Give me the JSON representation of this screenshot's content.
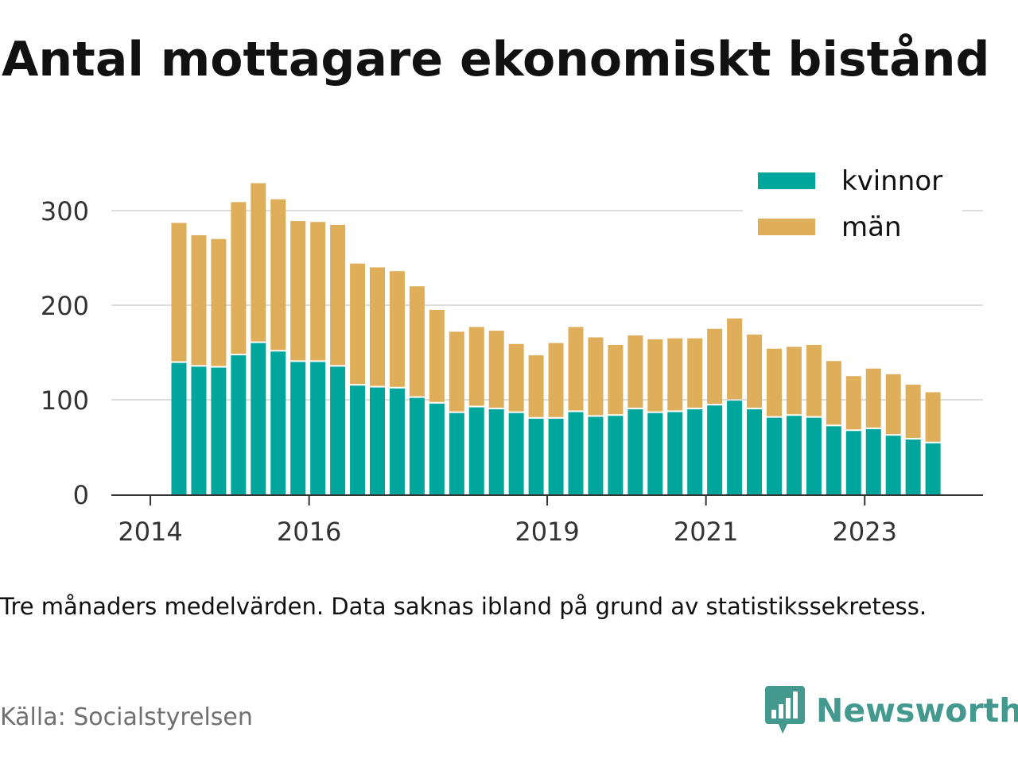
{
  "title": "Antal mottagare ekonomiskt bistånd",
  "caption": "Tre månaders medelvärden. Data saknas ibland på grund av statistikssekretess.",
  "source": "Källa: Socialstyrelsen",
  "brand": {
    "name": "Newsworthy",
    "icon": "newsworthy-logo-icon",
    "color": "#44998f"
  },
  "chart_data": {
    "type": "bar",
    "stacked": true,
    "ylim": [
      0,
      330
    ],
    "yticks": [
      0,
      100,
      200,
      300
    ],
    "xticks": [
      {
        "label": "2014",
        "index": -1
      },
      {
        "label": "2016",
        "index": 7
      },
      {
        "label": "2019",
        "index": 19
      },
      {
        "label": "2021",
        "index": 27
      },
      {
        "label": "2023",
        "index": 35
      }
    ],
    "grid": true,
    "legend_position": "top-right",
    "series": [
      {
        "name": "kvinnor",
        "color": "#00a69c",
        "values": [
          139,
          135,
          134,
          147,
          160,
          151,
          140,
          140,
          135,
          115,
          113,
          112,
          102,
          96,
          86,
          92,
          90,
          86,
          80,
          80,
          87,
          82,
          83,
          90,
          86,
          87,
          90,
          94,
          99,
          90,
          81,
          83,
          81,
          72,
          67,
          69,
          62,
          58,
          54
        ]
      },
      {
        "name": "män",
        "color": "#deae5a",
        "values": [
          148,
          139,
          136,
          162,
          169,
          161,
          149,
          148,
          150,
          129,
          127,
          124,
          118,
          99,
          86,
          85,
          83,
          73,
          67,
          80,
          90,
          84,
          75,
          78,
          78,
          78,
          75,
          81,
          87,
          79,
          73,
          73,
          77,
          69,
          58,
          64,
          65,
          58,
          54
        ]
      }
    ]
  }
}
